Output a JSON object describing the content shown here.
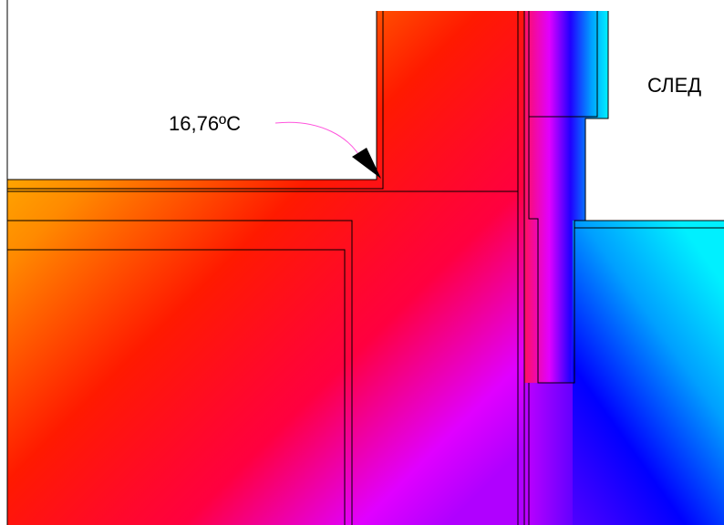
{
  "annotations": {
    "temperature": "16,76ºC",
    "label": "СЛЕД"
  }
}
